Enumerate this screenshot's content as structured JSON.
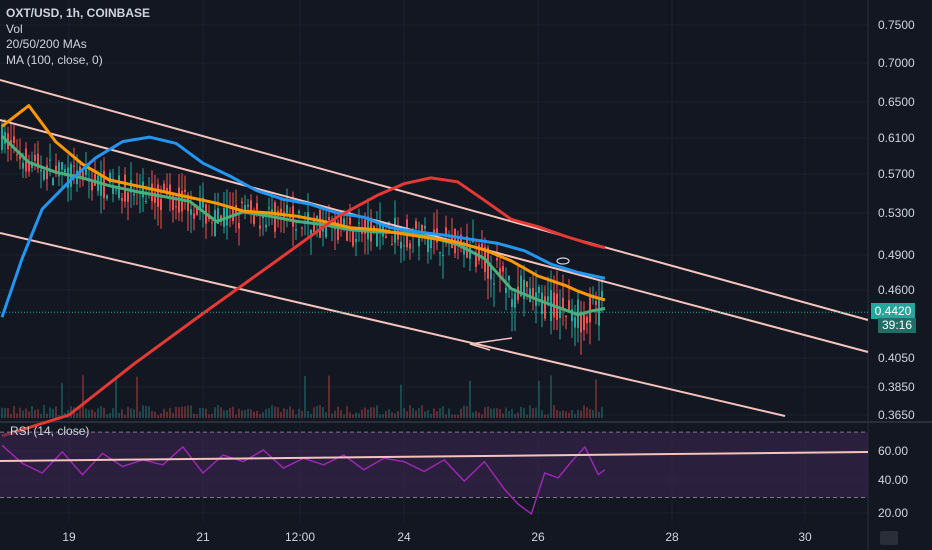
{
  "legend": {
    "title": "OXT/USD, 1h, COINBASE",
    "vol": "Vol",
    "mas": "20/50/200 MAs",
    "ma100": "MA (100, close, 0)"
  },
  "rsi_label": "RSI (14, close)",
  "last_price_label": "0.4420",
  "countdown_label": "39:16",
  "colors": {
    "background": "#131722",
    "grid": "#1e222d",
    "candle_up": "#26a69a",
    "candle_down": "#ef5350",
    "ma20": "#4caf7a",
    "ma50": "#ff9800",
    "ma100": "#2196f3",
    "ma200": "#e53935",
    "trendline": "#f3c3bc",
    "rsi_line": "#9c27b0",
    "rsi_band": "#3a2450"
  },
  "chart_data": [
    {
      "type": "line",
      "title": "OXT/USD, 1h, COINBASE",
      "x_ticks": [
        "19",
        "21",
        "12:00",
        "24",
        "26",
        "28",
        "30"
      ],
      "y_ticks": [
        "0.7500",
        "0.7000",
        "0.6500",
        "0.6100",
        "0.5700",
        "0.5300",
        "0.4900",
        "0.4600",
        "0.4050",
        "0.3850",
        "0.3650"
      ],
      "last_price": 0.442,
      "series": [
        {
          "name": "MA 20",
          "x": [
            18.0,
            18.4,
            18.8,
            19.2,
            19.6,
            20.0,
            20.4,
            20.8,
            21.2,
            21.6,
            22.0,
            22.4,
            22.8,
            23.2,
            23.6,
            24.0,
            24.4,
            24.8,
            25.2,
            25.6,
            26.0,
            26.4,
            26.6,
            26.8,
            27.0
          ],
          "values": [
            0.612,
            0.583,
            0.572,
            0.566,
            0.558,
            0.552,
            0.547,
            0.542,
            0.522,
            0.531,
            0.527,
            0.522,
            0.519,
            0.514,
            0.512,
            0.511,
            0.507,
            0.5,
            0.487,
            0.461,
            0.452,
            0.444,
            0.44,
            0.443,
            0.445
          ]
        },
        {
          "name": "MA 50",
          "x": [
            18.0,
            18.4,
            18.8,
            19.2,
            19.6,
            20.0,
            20.4,
            20.8,
            21.2,
            21.6,
            22.0,
            22.4,
            22.8,
            23.2,
            23.6,
            24.0,
            24.4,
            24.8,
            25.2,
            25.6,
            26.0,
            26.4,
            26.6,
            26.8,
            27.0
          ],
          "values": [
            0.623,
            0.646,
            0.606,
            0.581,
            0.564,
            0.558,
            0.552,
            0.546,
            0.54,
            0.532,
            0.53,
            0.527,
            0.522,
            0.516,
            0.514,
            0.51,
            0.506,
            0.502,
            0.495,
            0.485,
            0.472,
            0.464,
            0.459,
            0.455,
            0.452
          ]
        },
        {
          "name": "MA 100",
          "x": [
            18.0,
            18.3,
            18.6,
            19.0,
            19.4,
            19.8,
            20.2,
            20.6,
            21.0,
            21.4,
            21.8,
            22.2,
            22.6,
            23.0,
            23.4,
            23.8,
            24.2,
            24.6,
            25.0,
            25.4,
            25.8,
            26.2,
            26.6,
            27.0
          ],
          "values": [
            0.438,
            0.487,
            0.534,
            0.562,
            0.588,
            0.606,
            0.611,
            0.604,
            0.582,
            0.568,
            0.553,
            0.544,
            0.539,
            0.53,
            0.526,
            0.516,
            0.512,
            0.509,
            0.505,
            0.501,
            0.494,
            0.482,
            0.475,
            0.47
          ]
        },
        {
          "name": "MA 200",
          "x": [
            18.0,
            19.0,
            20.0,
            21.0,
            22.0,
            23.0,
            23.6,
            24.0,
            24.4,
            24.8,
            25.2,
            25.6,
            26.0,
            26.4,
            26.8,
            27.0
          ],
          "values": [
            0.35,
            0.365,
            0.402,
            0.441,
            0.481,
            0.526,
            0.548,
            0.56,
            0.566,
            0.562,
            0.543,
            0.524,
            0.517,
            0.508,
            0.5,
            0.497
          ]
        }
      ]
    },
    {
      "type": "line",
      "title": "RSI (14, close)",
      "y_ticks": [
        "60.00",
        "40.00",
        "20.00"
      ],
      "ylim": [
        15,
        75
      ],
      "bands": [
        70,
        30
      ],
      "series": [
        {
          "name": "RSI",
          "x": [
            18.0,
            18.3,
            18.6,
            18.9,
            19.2,
            19.5,
            19.8,
            20.1,
            20.4,
            20.7,
            21.0,
            21.3,
            21.6,
            21.9,
            22.2,
            22.5,
            22.8,
            23.1,
            23.4,
            23.7,
            24.0,
            24.3,
            24.6,
            24.9,
            25.2,
            25.5,
            25.7,
            25.9,
            26.1,
            26.3,
            26.5,
            26.7,
            26.9,
            27.0
          ],
          "values": [
            62,
            51,
            45,
            58,
            44,
            57,
            49,
            53,
            50,
            61,
            45,
            56,
            52,
            59,
            48,
            54,
            50,
            56,
            47,
            54,
            52,
            46,
            53,
            40,
            52,
            35,
            26,
            20,
            45,
            42,
            52,
            61,
            44,
            47
          ]
        }
      ]
    }
  ]
}
